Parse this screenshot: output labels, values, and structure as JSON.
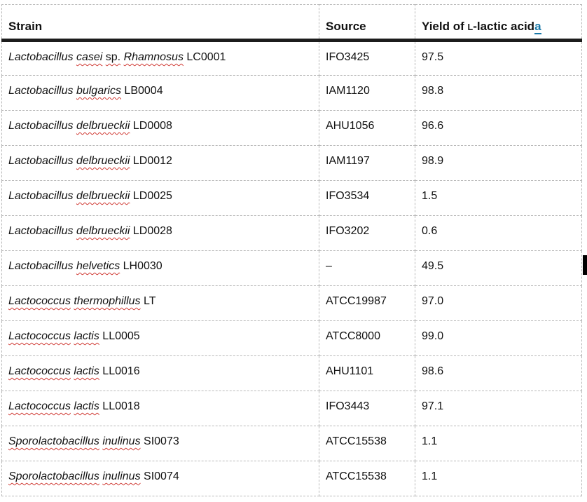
{
  "colors": {
    "gridline": "#b8b8b8",
    "header_rule": "#1c1c1c",
    "text": "#111111",
    "footnote_link": "#1878a8",
    "spellcheck_underline": "#d03a34"
  },
  "table": {
    "header": {
      "strain": "Strain",
      "source": "Source",
      "yield_prefix": "Yield of ",
      "yield_smallcap_letter": "L",
      "yield_suffix": "-lactic acid",
      "footnote_marker": "a"
    },
    "rows": [
      {
        "strain_segments": [
          {
            "text": "Lactobacillus ",
            "italic": true,
            "misspelled": false
          },
          {
            "text": "casei",
            "italic": true,
            "misspelled": true
          },
          {
            "text": " ",
            "italic": false,
            "misspelled": false
          },
          {
            "text": "sp.",
            "italic": false,
            "misspelled": true
          },
          {
            "text": " ",
            "italic": false,
            "misspelled": false
          },
          {
            "text": "Rhamnosus",
            "italic": true,
            "misspelled": true
          },
          {
            "text": " LC0001",
            "italic": false,
            "misspelled": false
          }
        ],
        "source": "IFO3425",
        "yield": "97.5"
      },
      {
        "strain_segments": [
          {
            "text": "Lactobacillus ",
            "italic": true,
            "misspelled": false
          },
          {
            "text": "bulgarics",
            "italic": true,
            "misspelled": true
          },
          {
            "text": " LB0004",
            "italic": false,
            "misspelled": false
          }
        ],
        "source": "IAM1120",
        "yield": "98.8"
      },
      {
        "strain_segments": [
          {
            "text": "Lactobacillus ",
            "italic": true,
            "misspelled": false
          },
          {
            "text": "delbrueckii",
            "italic": true,
            "misspelled": true
          },
          {
            "text": " LD0008",
            "italic": false,
            "misspelled": false
          }
        ],
        "source": "AHU1056",
        "yield": "96.6"
      },
      {
        "strain_segments": [
          {
            "text": "Lactobacillus ",
            "italic": true,
            "misspelled": false
          },
          {
            "text": "delbrueckii",
            "italic": true,
            "misspelled": true
          },
          {
            "text": " LD0012",
            "italic": false,
            "misspelled": false
          }
        ],
        "source": "IAM1197",
        "yield": "98.9"
      },
      {
        "strain_segments": [
          {
            "text": "Lactobacillus ",
            "italic": true,
            "misspelled": false
          },
          {
            "text": "delbrueckii",
            "italic": true,
            "misspelled": true
          },
          {
            "text": " LD0025",
            "italic": false,
            "misspelled": false
          }
        ],
        "source": "IFO3534",
        "yield": "1.5"
      },
      {
        "strain_segments": [
          {
            "text": "Lactobacillus ",
            "italic": true,
            "misspelled": false
          },
          {
            "text": "delbrueckii",
            "italic": true,
            "misspelled": true
          },
          {
            "text": " LD0028",
            "italic": false,
            "misspelled": false
          }
        ],
        "source": "IFO3202",
        "yield": "0.6"
      },
      {
        "strain_segments": [
          {
            "text": "Lactobacillus ",
            "italic": true,
            "misspelled": false
          },
          {
            "text": "helvetics",
            "italic": true,
            "misspelled": true
          },
          {
            "text": " LH0030",
            "italic": false,
            "misspelled": false
          }
        ],
        "source": "–",
        "yield": "49.5"
      },
      {
        "strain_segments": [
          {
            "text": "Lactococcus",
            "italic": true,
            "misspelled": true
          },
          {
            "text": " ",
            "italic": false,
            "misspelled": false
          },
          {
            "text": "thermophillus",
            "italic": true,
            "misspelled": true
          },
          {
            "text": " LT",
            "italic": false,
            "misspelled": false
          }
        ],
        "source": "ATCC19987",
        "yield": "97.0"
      },
      {
        "strain_segments": [
          {
            "text": "Lactococcus",
            "italic": true,
            "misspelled": true
          },
          {
            "text": " ",
            "italic": false,
            "misspelled": false
          },
          {
            "text": "lactis",
            "italic": true,
            "misspelled": true
          },
          {
            "text": " LL0005",
            "italic": false,
            "misspelled": false
          }
        ],
        "source": "ATCC8000",
        "yield": "99.0"
      },
      {
        "strain_segments": [
          {
            "text": "Lactococcus",
            "italic": true,
            "misspelled": true
          },
          {
            "text": " ",
            "italic": false,
            "misspelled": false
          },
          {
            "text": "lactis",
            "italic": true,
            "misspelled": true
          },
          {
            "text": " LL0016",
            "italic": false,
            "misspelled": false
          }
        ],
        "source": "AHU1101",
        "yield": "98.6"
      },
      {
        "strain_segments": [
          {
            "text": "Lactococcus",
            "italic": true,
            "misspelled": true
          },
          {
            "text": " ",
            "italic": false,
            "misspelled": false
          },
          {
            "text": "lactis",
            "italic": true,
            "misspelled": true
          },
          {
            "text": " LL0018",
            "italic": false,
            "misspelled": false
          }
        ],
        "source": "IFO3443",
        "yield": "97.1"
      },
      {
        "strain_segments": [
          {
            "text": "Sporolactobacillus",
            "italic": true,
            "misspelled": true
          },
          {
            "text": " ",
            "italic": false,
            "misspelled": false
          },
          {
            "text": "inulinus",
            "italic": true,
            "misspelled": true
          },
          {
            "text": " SI0073",
            "italic": false,
            "misspelled": false
          }
        ],
        "source": "ATCC15538",
        "yield": "1.1"
      },
      {
        "strain_segments": [
          {
            "text": "Sporolactobacillus",
            "italic": true,
            "misspelled": true
          },
          {
            "text": " ",
            "italic": false,
            "misspelled": false
          },
          {
            "text": "inulinus",
            "italic": true,
            "misspelled": true
          },
          {
            "text": " SI0074",
            "italic": false,
            "misspelled": false
          }
        ],
        "source": "ATCC15538",
        "yield": "1.1"
      }
    ]
  }
}
